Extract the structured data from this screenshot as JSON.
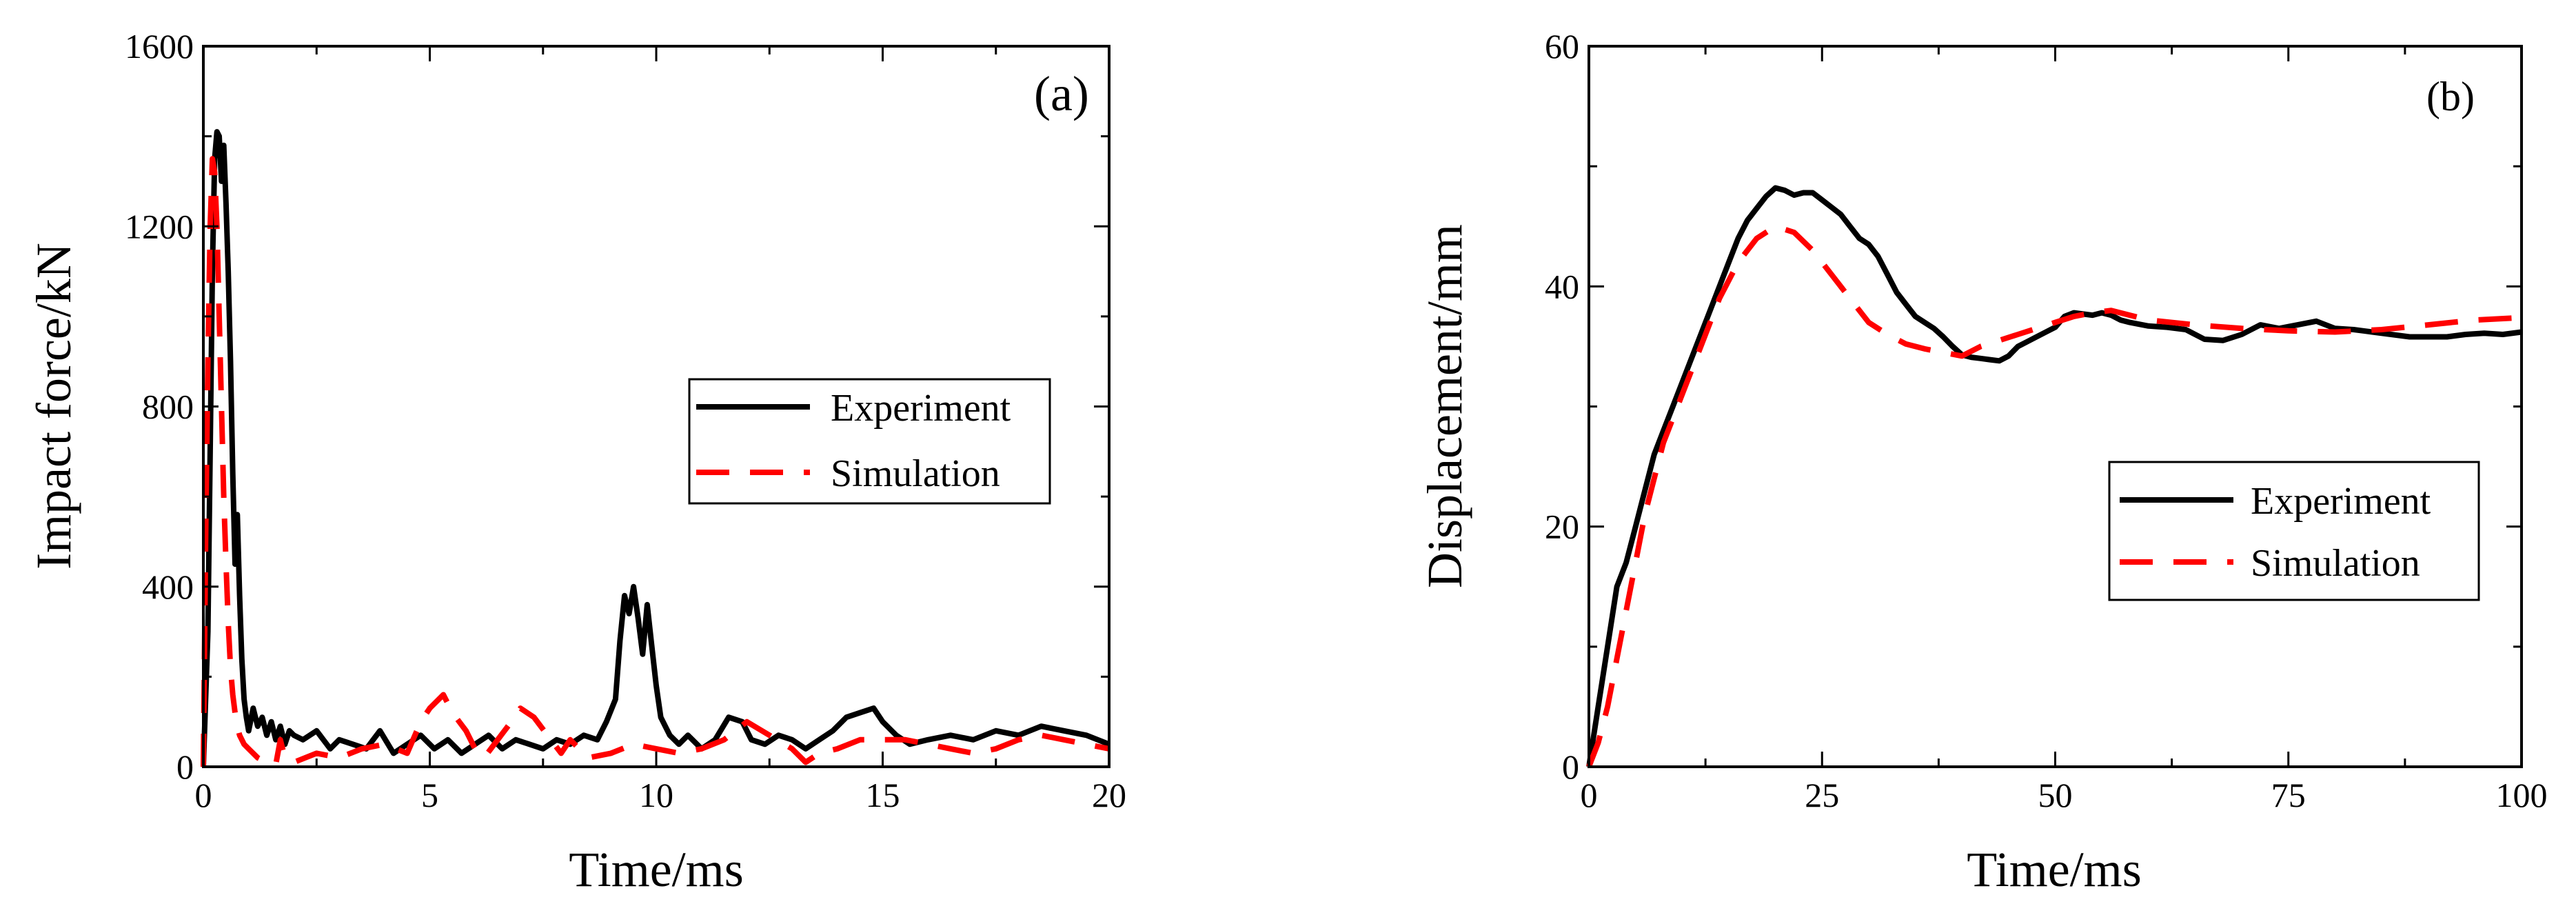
{
  "chart_data": [
    {
      "type": "line",
      "panel_label": "(a)",
      "xlabel": "Time/ms",
      "ylabel": "Impact force/kN",
      "xlim": [
        0,
        20
      ],
      "ylim": [
        0,
        1600
      ],
      "xticks": [
        0,
        5,
        10,
        15,
        20
      ],
      "yticks": [
        0,
        400,
        800,
        1200,
        1600
      ],
      "legend": {
        "position": "center-right",
        "entries": [
          "Experiment",
          "Simulation"
        ]
      },
      "series": [
        {
          "name": "Experiment",
          "color": "#000000",
          "dash": "solid",
          "x": [
            0,
            0.05,
            0.1,
            0.15,
            0.2,
            0.25,
            0.3,
            0.35,
            0.4,
            0.45,
            0.5,
            0.55,
            0.6,
            0.65,
            0.7,
            0.75,
            0.8,
            0.85,
            0.9,
            0.95,
            1.0,
            1.1,
            1.2,
            1.3,
            1.4,
            1.5,
            1.6,
            1.7,
            1.8,
            1.9,
            2.0,
            2.2,
            2.5,
            2.8,
            3.0,
            3.3,
            3.6,
            3.9,
            4.2,
            4.5,
            4.8,
            5.1,
            5.4,
            5.7,
            6.0,
            6.3,
            6.6,
            6.9,
            7.2,
            7.5,
            7.8,
            8.1,
            8.4,
            8.7,
            8.9,
            9.1,
            9.2,
            9.3,
            9.4,
            9.5,
            9.6,
            9.7,
            9.8,
            9.9,
            10.0,
            10.1,
            10.2,
            10.3,
            10.5,
            10.7,
            11.0,
            11.3,
            11.6,
            11.9,
            12.1,
            12.4,
            12.7,
            13.0,
            13.3,
            13.6,
            13.9,
            14.2,
            14.5,
            14.8,
            15.0,
            15.3,
            15.6,
            16.0,
            16.5,
            17.0,
            17.5,
            18.0,
            18.5,
            19.0,
            19.5,
            20.0
          ],
          "values": [
            0,
            150,
            300,
            700,
            1100,
            1350,
            1410,
            1400,
            1300,
            1380,
            1250,
            1100,
            900,
            650,
            450,
            560,
            380,
            240,
            150,
            110,
            80,
            130,
            90,
            110,
            70,
            100,
            60,
            90,
            50,
            80,
            70,
            60,
            80,
            40,
            60,
            50,
            40,
            80,
            30,
            50,
            70,
            40,
            60,
            30,
            50,
            70,
            40,
            60,
            50,
            40,
            60,
            50,
            70,
            60,
            100,
            150,
            280,
            380,
            340,
            400,
            330,
            250,
            360,
            270,
            180,
            110,
            90,
            70,
            50,
            70,
            40,
            60,
            110,
            100,
            60,
            50,
            70,
            60,
            40,
            60,
            80,
            110,
            120,
            130,
            100,
            70,
            50,
            60,
            70,
            60,
            80,
            70,
            90,
            80,
            70,
            50
          ]
        },
        {
          "name": "Simulation",
          "color": "#ff0000",
          "dash": "dashed",
          "x": [
            0,
            0.05,
            0.1,
            0.15,
            0.2,
            0.25,
            0.3,
            0.35,
            0.4,
            0.45,
            0.5,
            0.55,
            0.6,
            0.65,
            0.7,
            0.75,
            0.8,
            0.9,
            1.0,
            1.2,
            1.4,
            1.6,
            1.7,
            1.8,
            2.0,
            2.5,
            3.0,
            3.5,
            4.0,
            4.5,
            4.8,
            5.0,
            5.3,
            5.5,
            5.8,
            6.0,
            6.2,
            6.5,
            6.8,
            7.0,
            7.3,
            7.6,
            7.9,
            8.1,
            8.3,
            8.5,
            9.0,
            9.5,
            10.0,
            10.5,
            11.0,
            11.5,
            12.0,
            12.5,
            13.0,
            13.3,
            13.6,
            14.0,
            14.5,
            15.0,
            15.5,
            16.0,
            16.5,
            17.0,
            17.5,
            18.0,
            18.5,
            19.0,
            19.5,
            20.0
          ],
          "values": [
            0,
            500,
            900,
            1200,
            1350,
            1320,
            1200,
            1000,
            800,
            600,
            450,
            320,
            220,
            160,
            120,
            90,
            70,
            50,
            40,
            20,
            10,
            5,
            60,
            20,
            10,
            30,
            20,
            40,
            50,
            30,
            100,
            130,
            160,
            120,
            80,
            40,
            20,
            60,
            100,
            130,
            110,
            70,
            30,
            60,
            40,
            20,
            30,
            50,
            40,
            30,
            40,
            60,
            100,
            70,
            40,
            10,
            30,
            40,
            60,
            60,
            60,
            50,
            40,
            30,
            40,
            60,
            70,
            60,
            50,
            40
          ]
        }
      ]
    },
    {
      "type": "line",
      "panel_label": "(b)",
      "xlabel": "Time/ms",
      "ylabel": "Displacement/mm",
      "xlim": [
        0,
        100
      ],
      "ylim": [
        0,
        60
      ],
      "xticks": [
        0,
        25,
        50,
        75,
        100
      ],
      "yticks": [
        0,
        20,
        40,
        60
      ],
      "legend": {
        "position": "center-right",
        "entries": [
          "Experiment",
          "Simulation"
        ]
      },
      "series": [
        {
          "name": "Experiment",
          "color": "#000000",
          "dash": "solid",
          "x": [
            0,
            1,
            2,
            3,
            4,
            5,
            6,
            7,
            8,
            9,
            10,
            11,
            12,
            13,
            14,
            15,
            16,
            17,
            18,
            19,
            20,
            21,
            22,
            23,
            24,
            25,
            26,
            27,
            28,
            29,
            30,
            31,
            32,
            33,
            34,
            35,
            36,
            37,
            38,
            39,
            40,
            41,
            42,
            43,
            44,
            45,
            46,
            47,
            48,
            49,
            50,
            51,
            52,
            53,
            54,
            55,
            56,
            57,
            58,
            60,
            62,
            64,
            66,
            68,
            70,
            72,
            74,
            76,
            78,
            80,
            82,
            84,
            86,
            88,
            90,
            92,
            94,
            96,
            98,
            100
          ],
          "values": [
            0,
            5,
            10,
            15,
            17,
            20,
            23,
            26,
            28,
            30,
            32,
            34,
            36,
            38,
            40,
            42,
            44,
            45.5,
            46.5,
            47.5,
            48.2,
            48,
            47.6,
            47.8,
            47.8,
            47.2,
            46.6,
            46,
            45,
            44,
            43.5,
            42.5,
            41,
            39.5,
            38.5,
            37.5,
            37,
            36.5,
            35.8,
            35,
            34.3,
            34.1,
            34,
            33.9,
            33.8,
            34.2,
            35,
            35.4,
            35.8,
            36.2,
            36.6,
            37.5,
            37.8,
            37.7,
            37.6,
            37.8,
            37.6,
            37.2,
            37,
            36.7,
            36.6,
            36.4,
            35.6,
            35.5,
            36,
            36.8,
            36.5,
            36.8,
            37.1,
            36.5,
            36.4,
            36.2,
            36,
            35.8,
            35.8,
            35.8,
            36,
            36.1,
            36,
            36.2
          ]
        },
        {
          "name": "Simulation",
          "color": "#ff0000",
          "dash": "dashed",
          "x": [
            0,
            1,
            2,
            3,
            4,
            5,
            6,
            7,
            8,
            10,
            12,
            14,
            16,
            18,
            20,
            22,
            24,
            26,
            28,
            30,
            32,
            34,
            36,
            38,
            40,
            42,
            44,
            46,
            48,
            50,
            52,
            54,
            56,
            58,
            60,
            65,
            70,
            75,
            80,
            85,
            90,
            95,
            100
          ],
          "values": [
            0,
            2,
            5,
            9,
            13,
            17,
            21,
            24,
            27,
            31,
            35,
            39,
            42,
            44,
            45,
            44.5,
            43,
            41,
            39,
            37,
            36,
            35.2,
            34.8,
            34.5,
            34.2,
            35,
            35.5,
            36,
            36.5,
            37,
            37.5,
            37.8,
            38,
            37.6,
            37.2,
            36.8,
            36.5,
            36.3,
            36.2,
            36.4,
            36.8,
            37.2,
            37.4
          ]
        }
      ]
    }
  ]
}
